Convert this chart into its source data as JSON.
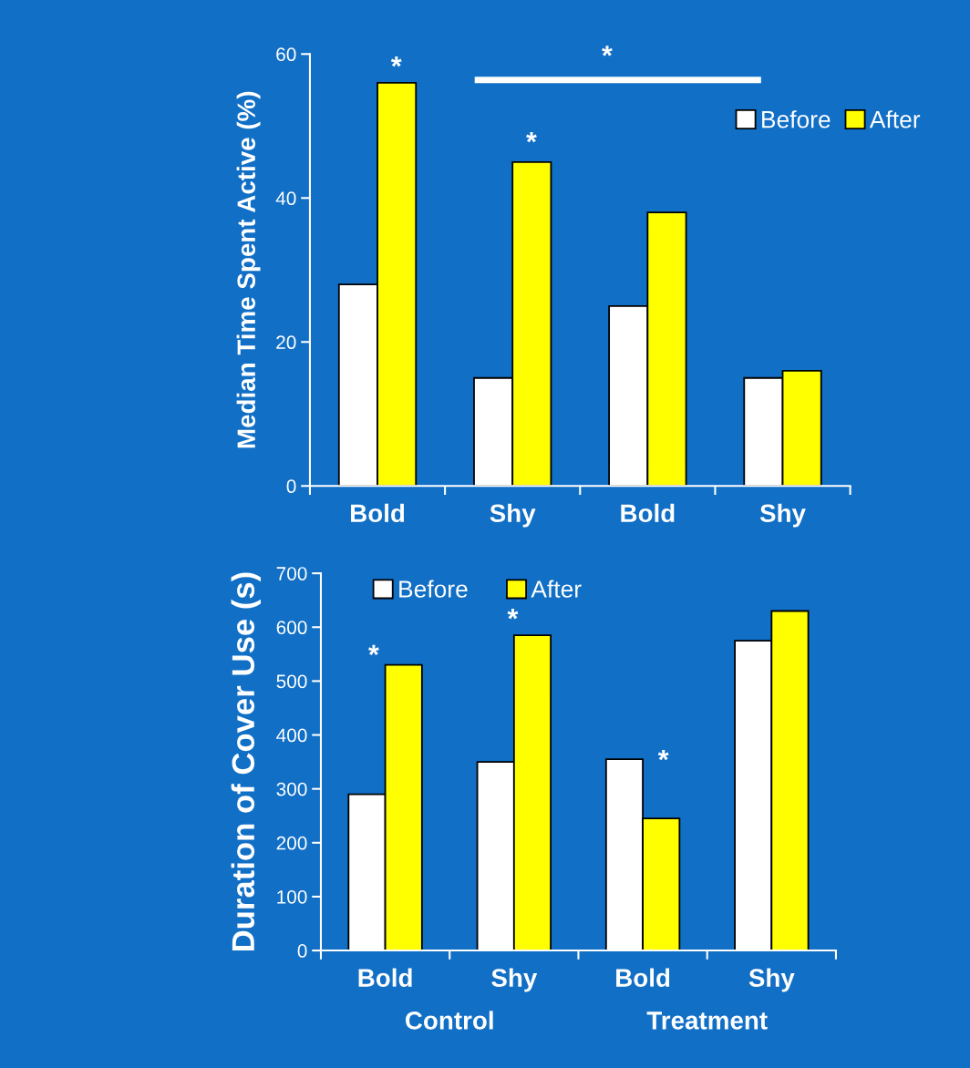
{
  "chart_data": [
    {
      "type": "bar",
      "ylabel": "Median Time Spent Active (%)",
      "categories": [
        "Bold",
        "Shy",
        "Bold",
        "Shy"
      ],
      "series": [
        {
          "name": "Before",
          "color": "#ffffff",
          "values": [
            28,
            15,
            25,
            15
          ]
        },
        {
          "name": "After",
          "color": "#ffff00",
          "values": [
            56,
            45,
            38,
            16
          ]
        }
      ],
      "ylim": [
        0,
        60
      ],
      "yticks": [
        0,
        20,
        40,
        60
      ],
      "legend": "top right",
      "grid": false,
      "annotations": [
        "*",
        "*",
        "*"
      ]
    },
    {
      "type": "bar",
      "ylabel": "Duration of Cover Use (s)",
      "categories": [
        "Bold",
        "Shy",
        "Bold",
        "Shy"
      ],
      "series": [
        {
          "name": "Before",
          "color": "#ffffff",
          "values": [
            290,
            350,
            355,
            575
          ]
        },
        {
          "name": "After",
          "color": "#ffff00",
          "values": [
            530,
            585,
            245,
            630
          ]
        }
      ],
      "ylim": [
        0,
        700
      ],
      "yticks": [
        0,
        100,
        200,
        300,
        400,
        500,
        600,
        700
      ],
      "legend": "top left",
      "grid": false,
      "annotations": [
        "*",
        "*",
        "*",
        "Control",
        "Treatment"
      ]
    }
  ]
}
